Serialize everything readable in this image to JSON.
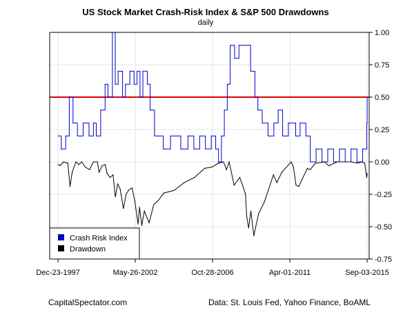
{
  "chart_data": {
    "type": "line",
    "title": "US Stock Market Crash-Risk Index & S&P 500 Drawdowns",
    "subtitle": "daily",
    "footer_left": "CapitalSpectator.com",
    "footer_right": "Data: St. Louis Fed, Yahoo Finance, BoAML",
    "x_tick_labels": [
      "Dec-23-1997",
      "May-26-2002",
      "Oct-28-2006",
      "Apr-01-2011",
      "Sep-03-2015"
    ],
    "xlim": [
      "1997-07-01",
      "2015-10-15"
    ],
    "ylim": [
      -0.75,
      1.0
    ],
    "y_ticks": [
      1.0,
      0.75,
      0.5,
      0.25,
      0.0,
      -0.25,
      -0.5,
      -0.75
    ],
    "y_tick_labels": [
      "1.00",
      "0.75",
      "0.50",
      "0.25",
      "0.00",
      "-0.25",
      "-0.50",
      "-0.75"
    ],
    "grid": true,
    "legend_position": "bottom-left",
    "threshold": {
      "value": 0.5,
      "color": "#e00000"
    },
    "series": [
      {
        "name": "Crash Risk Index",
        "color": "#0000cc",
        "step": true,
        "x": [
          "1997-12-23",
          "1998-03-01",
          "1998-06-01",
          "1998-08-15",
          "1998-11-01",
          "1999-02-01",
          "1999-06-01",
          "1999-10-01",
          "2000-01-01",
          "2000-03-01",
          "2000-06-01",
          "2000-09-01",
          "2000-11-01",
          "2001-02-01",
          "2001-04-01",
          "2001-06-01",
          "2001-09-01",
          "2001-11-01",
          "2002-02-01",
          "2002-05-01",
          "2002-07-01",
          "2002-09-01",
          "2002-11-01",
          "2003-02-01",
          "2003-04-01",
          "2003-07-01",
          "2004-01-01",
          "2004-06-01",
          "2005-01-01",
          "2005-06-01",
          "2005-10-01",
          "2006-02-01",
          "2006-06-01",
          "2006-10-01",
          "2007-01-01",
          "2007-03-01",
          "2007-05-01",
          "2007-07-01",
          "2007-09-01",
          "2007-11-01",
          "2008-02-01",
          "2008-05-01",
          "2008-09-01",
          "2009-01-01",
          "2009-04-01",
          "2009-06-01",
          "2009-09-01",
          "2010-01-01",
          "2010-05-01",
          "2010-08-01",
          "2010-11-01",
          "2011-03-01",
          "2011-08-01",
          "2011-11-01",
          "2012-03-01",
          "2012-06-01",
          "2012-10-01",
          "2013-02-01",
          "2013-06-01",
          "2013-10-01",
          "2014-02-01",
          "2014-06-01",
          "2014-10-01",
          "2015-02-01",
          "2015-06-01",
          "2015-08-20",
          "2015-08-27",
          "2015-09-03"
        ],
        "values": [
          0.2,
          0.1,
          0.2,
          0.5,
          0.3,
          0.2,
          0.3,
          0.2,
          0.3,
          0.2,
          0.4,
          0.6,
          0.5,
          1.0,
          0.6,
          0.7,
          0.5,
          0.6,
          0.7,
          0.6,
          0.7,
          0.5,
          0.7,
          0.6,
          0.4,
          0.2,
          0.1,
          0.2,
          0.1,
          0.2,
          0.1,
          0.2,
          0.1,
          0.2,
          0.1,
          0.0,
          0.2,
          0.4,
          0.6,
          0.9,
          0.8,
          0.9,
          0.9,
          0.7,
          0.5,
          0.4,
          0.3,
          0.2,
          0.3,
          0.4,
          0.2,
          0.3,
          0.2,
          0.3,
          0.2,
          0.0,
          0.1,
          0.0,
          0.1,
          0.0,
          0.1,
          0.0,
          0.1,
          0.0,
          0.1,
          0.1,
          0.3,
          0.5
        ]
      },
      {
        "name": "Drawdown",
        "color": "#000000",
        "step": false,
        "x": [
          "1997-12-23",
          "1998-02-01",
          "1998-04-15",
          "1998-07-15",
          "1998-08-31",
          "1998-10-15",
          "1998-12-31",
          "1999-03-01",
          "1999-05-01",
          "1999-07-15",
          "1999-10-15",
          "2000-01-01",
          "2000-03-24",
          "2000-05-01",
          "2000-07-01",
          "2000-09-01",
          "2000-10-15",
          "2000-12-15",
          "2001-02-15",
          "2001-04-04",
          "2001-05-22",
          "2001-07-15",
          "2001-09-21",
          "2001-11-15",
          "2002-01-04",
          "2002-03-19",
          "2002-05-15",
          "2002-07-23",
          "2002-08-22",
          "2002-10-09",
          "2002-12-01",
          "2003-03-11",
          "2003-06-15",
          "2003-09-15",
          "2004-01-15",
          "2004-08-15",
          "2005-03-15",
          "2005-10-15",
          "2006-05-15",
          "2006-10-15",
          "2007-02-27",
          "2007-06-15",
          "2007-08-15",
          "2007-10-09",
          "2008-01-22",
          "2008-05-19",
          "2008-07-15",
          "2008-09-15",
          "2008-10-10",
          "2008-11-20",
          "2009-01-06",
          "2009-03-09",
          "2009-06-15",
          "2009-10-15",
          "2010-04-23",
          "2010-07-02",
          "2010-10-15",
          "2011-04-29",
          "2011-06-15",
          "2011-08-08",
          "2011-10-03",
          "2012-04-01",
          "2012-06-01",
          "2012-09-15",
          "2013-03-28",
          "2013-06-24",
          "2013-12-15",
          "2014-05-15",
          "2014-10-15",
          "2015-02-15",
          "2015-05-21",
          "2015-07-15",
          "2015-08-25",
          "2015-09-03"
        ],
        "values": [
          -0.02,
          -0.03,
          0.0,
          -0.01,
          -0.19,
          -0.08,
          0.0,
          -0.02,
          0.0,
          -0.04,
          -0.06,
          0.0,
          0.0,
          -0.08,
          -0.03,
          -0.02,
          -0.09,
          -0.12,
          -0.1,
          -0.27,
          -0.17,
          -0.21,
          -0.36,
          -0.25,
          -0.22,
          -0.2,
          -0.3,
          -0.48,
          -0.35,
          -0.49,
          -0.38,
          -0.47,
          -0.33,
          -0.3,
          -0.24,
          -0.22,
          -0.16,
          -0.12,
          -0.05,
          -0.04,
          -0.01,
          0.0,
          -0.06,
          0.0,
          -0.18,
          -0.12,
          -0.18,
          -0.25,
          -0.42,
          -0.51,
          -0.38,
          -0.57,
          -0.4,
          -0.31,
          -0.1,
          -0.16,
          -0.08,
          0.0,
          -0.04,
          -0.18,
          -0.19,
          -0.05,
          -0.06,
          -0.01,
          0.0,
          -0.03,
          0.0,
          0.0,
          0.0,
          -0.01,
          0.0,
          -0.01,
          -0.12,
          -0.09
        ]
      }
    ]
  }
}
